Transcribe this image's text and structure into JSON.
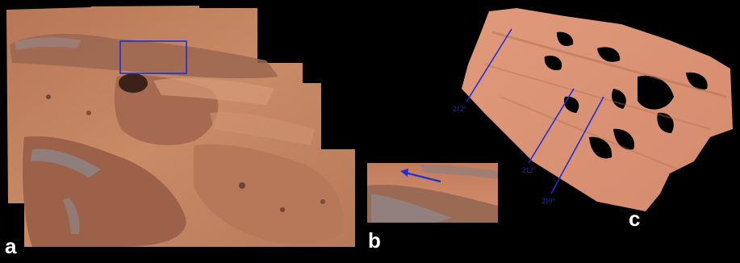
{
  "panels": {
    "a": {
      "label": "a"
    },
    "b": {
      "label": "b"
    },
    "c": {
      "label": "c"
    }
  },
  "strike_angles": {
    "upper_left": "212°",
    "lower_middle": "212°",
    "lower_right": "210°"
  },
  "colors": {
    "background": "#000000",
    "rock_base": "#c9825e",
    "rock_light": "#e0a080",
    "rock_dark": "#8a5a45",
    "annotation_blue": "#1f2fd8",
    "label_white": "#ffffff"
  }
}
